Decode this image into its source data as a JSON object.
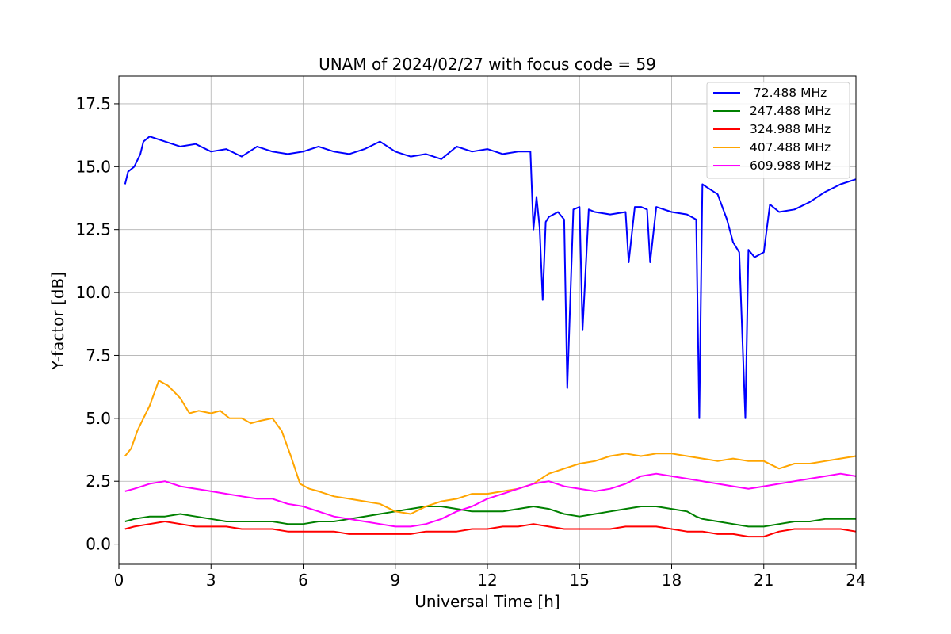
{
  "chart_data": {
    "type": "line",
    "title": "UNAM of 2024/02/27 with focus code = 59",
    "xlabel": "Universal Time [h]",
    "ylabel": "Y-factor [dB]",
    "xlim": [
      0,
      24
    ],
    "ylim": [
      -0.8,
      18.6
    ],
    "xticks": [
      0,
      3,
      6,
      9,
      12,
      15,
      18,
      21,
      24
    ],
    "xtick_labels": [
      "0",
      "3",
      "6",
      "9",
      "12",
      "15",
      "18",
      "21",
      "24"
    ],
    "yticks": [
      0,
      2.5,
      5,
      7.5,
      10,
      12.5,
      15,
      17.5
    ],
    "ytick_labels": [
      "0.0",
      "2.5",
      "5.0",
      "7.5",
      "10.0",
      "12.5",
      "15.0",
      "17.5"
    ],
    "grid": true,
    "legend_position": "top-right",
    "series": [
      {
        "name": " 72.488 MHz",
        "color": "#0000ff",
        "x": [
          0.2,
          0.3,
          0.5,
          0.7,
          0.8,
          1.0,
          1.5,
          2.0,
          2.5,
          3.0,
          3.5,
          4.0,
          4.5,
          5.0,
          5.5,
          6.0,
          6.5,
          7.0,
          7.5,
          8.0,
          8.5,
          9.0,
          9.5,
          10.0,
          10.5,
          11.0,
          11.5,
          12.0,
          12.5,
          13.0,
          13.4,
          13.5,
          13.6,
          13.7,
          13.8,
          13.9,
          14.0,
          14.3,
          14.5,
          14.6,
          14.8,
          15.0,
          15.1,
          15.3,
          15.5,
          16.0,
          16.5,
          16.6,
          16.8,
          17.0,
          17.2,
          17.3,
          17.5,
          18.0,
          18.5,
          18.8,
          18.9,
          19.0,
          19.5,
          19.8,
          20.0,
          20.2,
          20.4,
          20.5,
          20.7,
          21.0,
          21.2,
          21.5,
          22.0,
          22.5,
          23.0,
          23.5,
          24.0
        ],
        "y": [
          14.3,
          14.8,
          15.0,
          15.5,
          16.0,
          16.2,
          16.0,
          15.8,
          15.9,
          15.6,
          15.7,
          15.4,
          15.8,
          15.6,
          15.5,
          15.6,
          15.8,
          15.6,
          15.5,
          15.7,
          16.0,
          15.6,
          15.4,
          15.5,
          15.3,
          15.8,
          15.6,
          15.7,
          15.5,
          15.6,
          15.6,
          12.5,
          13.8,
          12.6,
          9.7,
          12.8,
          13.0,
          13.2,
          12.9,
          6.2,
          13.3,
          13.4,
          8.5,
          13.3,
          13.2,
          13.1,
          13.2,
          11.2,
          13.4,
          13.4,
          13.3,
          11.2,
          13.4,
          13.2,
          13.1,
          12.9,
          5.0,
          14.3,
          13.9,
          12.9,
          12.0,
          11.6,
          5.0,
          11.7,
          11.4,
          11.6,
          13.5,
          13.2,
          13.3,
          13.6,
          14.0,
          14.3,
          14.5
        ]
      },
      {
        "name": "247.488 MHz",
        "color": "#008000",
        "x": [
          0.2,
          0.5,
          1.0,
          1.5,
          2.0,
          2.5,
          3.0,
          3.5,
          4.0,
          4.5,
          5.0,
          5.5,
          6.0,
          6.5,
          7.0,
          7.5,
          8.0,
          8.5,
          9.0,
          9.5,
          10.0,
          10.5,
          11.0,
          11.5,
          12.0,
          12.5,
          13.0,
          13.5,
          14.0,
          14.5,
          15.0,
          15.5,
          16.0,
          16.5,
          17.0,
          17.5,
          18.0,
          18.5,
          18.8,
          19.0,
          19.5,
          20.0,
          20.5,
          21.0,
          21.5,
          22.0,
          22.5,
          23.0,
          23.5,
          24.0
        ],
        "y": [
          0.9,
          1.0,
          1.1,
          1.1,
          1.2,
          1.1,
          1.0,
          0.9,
          0.9,
          0.9,
          0.9,
          0.8,
          0.8,
          0.9,
          0.9,
          1.0,
          1.1,
          1.2,
          1.3,
          1.4,
          1.5,
          1.5,
          1.4,
          1.3,
          1.3,
          1.3,
          1.4,
          1.5,
          1.4,
          1.2,
          1.1,
          1.2,
          1.3,
          1.4,
          1.5,
          1.5,
          1.4,
          1.3,
          1.1,
          1.0,
          0.9,
          0.8,
          0.7,
          0.7,
          0.8,
          0.9,
          0.9,
          1.0,
          1.0,
          1.0
        ]
      },
      {
        "name": "324.988 MHz",
        "color": "#ff0000",
        "x": [
          0.2,
          0.5,
          1.0,
          1.5,
          2.0,
          2.5,
          3.0,
          3.5,
          4.0,
          4.5,
          5.0,
          5.5,
          6.0,
          6.5,
          7.0,
          7.5,
          8.0,
          8.5,
          9.0,
          9.5,
          10.0,
          10.5,
          11.0,
          11.5,
          12.0,
          12.5,
          13.0,
          13.5,
          14.0,
          14.5,
          15.0,
          15.5,
          16.0,
          16.5,
          17.0,
          17.5,
          18.0,
          18.5,
          19.0,
          19.5,
          20.0,
          20.5,
          21.0,
          21.5,
          22.0,
          22.5,
          23.0,
          23.5,
          24.0
        ],
        "y": [
          0.6,
          0.7,
          0.8,
          0.9,
          0.8,
          0.7,
          0.7,
          0.7,
          0.6,
          0.6,
          0.6,
          0.5,
          0.5,
          0.5,
          0.5,
          0.4,
          0.4,
          0.4,
          0.4,
          0.4,
          0.5,
          0.5,
          0.5,
          0.6,
          0.6,
          0.7,
          0.7,
          0.8,
          0.7,
          0.6,
          0.6,
          0.6,
          0.6,
          0.7,
          0.7,
          0.7,
          0.6,
          0.5,
          0.5,
          0.4,
          0.4,
          0.3,
          0.3,
          0.5,
          0.6,
          0.6,
          0.6,
          0.6,
          0.5
        ]
      },
      {
        "name": "407.488 MHz",
        "color": "#ffa500",
        "x": [
          0.2,
          0.4,
          0.6,
          0.8,
          1.0,
          1.3,
          1.6,
          2.0,
          2.3,
          2.6,
          3.0,
          3.3,
          3.6,
          4.0,
          4.3,
          4.6,
          5.0,
          5.3,
          5.6,
          5.9,
          6.2,
          6.5,
          7.0,
          7.5,
          8.0,
          8.5,
          9.0,
          9.5,
          10.0,
          10.5,
          11.0,
          11.5,
          12.0,
          12.5,
          13.0,
          13.5,
          14.0,
          14.5,
          15.0,
          15.5,
          16.0,
          16.5,
          17.0,
          17.5,
          18.0,
          18.5,
          19.0,
          19.5,
          20.0,
          20.5,
          21.0,
          21.5,
          22.0,
          22.5,
          23.0,
          23.5,
          24.0
        ],
        "y": [
          3.5,
          3.8,
          4.5,
          5.0,
          5.5,
          6.5,
          6.3,
          5.8,
          5.2,
          5.3,
          5.2,
          5.3,
          5.0,
          5.0,
          4.8,
          4.9,
          5.0,
          4.5,
          3.5,
          2.4,
          2.2,
          2.1,
          1.9,
          1.8,
          1.7,
          1.6,
          1.3,
          1.2,
          1.5,
          1.7,
          1.8,
          2.0,
          2.0,
          2.1,
          2.2,
          2.4,
          2.8,
          3.0,
          3.2,
          3.3,
          3.5,
          3.6,
          3.5,
          3.6,
          3.6,
          3.5,
          3.4,
          3.3,
          3.4,
          3.3,
          3.3,
          3.0,
          3.2,
          3.2,
          3.3,
          3.4,
          3.5
        ]
      },
      {
        "name": "609.988 MHz",
        "color": "#ff00ff",
        "x": [
          0.2,
          0.5,
          1.0,
          1.5,
          2.0,
          2.5,
          3.0,
          3.5,
          4.0,
          4.5,
          5.0,
          5.5,
          6.0,
          6.5,
          7.0,
          7.5,
          8.0,
          8.5,
          9.0,
          9.5,
          10.0,
          10.5,
          11.0,
          11.5,
          12.0,
          12.5,
          13.0,
          13.5,
          14.0,
          14.5,
          15.0,
          15.5,
          16.0,
          16.5,
          17.0,
          17.5,
          18.0,
          18.5,
          19.0,
          19.5,
          20.0,
          20.5,
          21.0,
          21.5,
          22.0,
          22.5,
          23.0,
          23.5,
          24.0
        ],
        "y": [
          2.1,
          2.2,
          2.4,
          2.5,
          2.3,
          2.2,
          2.1,
          2.0,
          1.9,
          1.8,
          1.8,
          1.6,
          1.5,
          1.3,
          1.1,
          1.0,
          0.9,
          0.8,
          0.7,
          0.7,
          0.8,
          1.0,
          1.3,
          1.5,
          1.8,
          2.0,
          2.2,
          2.4,
          2.5,
          2.3,
          2.2,
          2.1,
          2.2,
          2.4,
          2.7,
          2.8,
          2.7,
          2.6,
          2.5,
          2.4,
          2.3,
          2.2,
          2.3,
          2.4,
          2.5,
          2.6,
          2.7,
          2.8,
          2.7
        ]
      }
    ]
  }
}
